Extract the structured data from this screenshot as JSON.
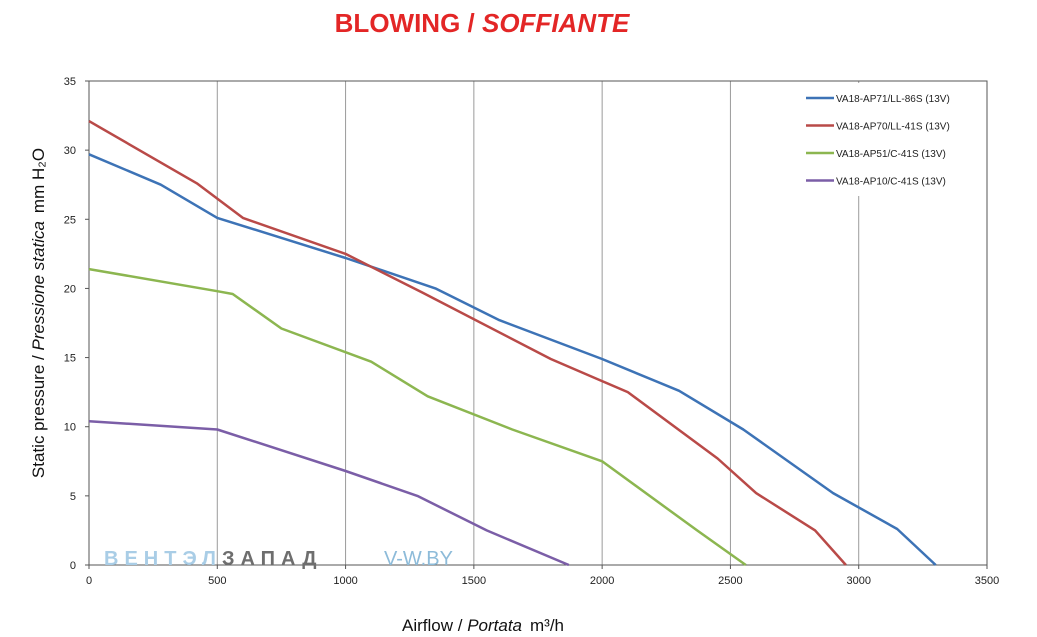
{
  "chart_data": {
    "type": "line",
    "title": "BLOWING",
    "subtitle": "SOFFIANTE",
    "xlabel": "Airflow",
    "xlabel_italic": "Portata",
    "xunit": "m³/h",
    "ylabel": "Static pressure",
    "ylabel_italic": "Pressione statica",
    "yunit": "mm H₂O",
    "xlim": [
      0,
      3500
    ],
    "ylim": [
      0,
      35
    ],
    "x_ticks": [
      0,
      500,
      1000,
      1500,
      2000,
      2500,
      3000,
      3500
    ],
    "y_ticks": [
      0,
      5,
      10,
      15,
      20,
      25,
      30,
      35
    ],
    "grid": "vertical",
    "legend_position": "top-right",
    "series": [
      {
        "name": "VA18-AP71/LL-86S (13V)",
        "color": "#3d73b6",
        "points": [
          [
            0,
            29.7
          ],
          [
            280,
            27.5
          ],
          [
            500,
            25.1
          ],
          [
            1000,
            22.2
          ],
          [
            1350,
            20.0
          ],
          [
            1600,
            17.7
          ],
          [
            2000,
            14.9
          ],
          [
            2300,
            12.6
          ],
          [
            2550,
            9.8
          ],
          [
            2900,
            5.2
          ],
          [
            3150,
            2.6
          ],
          [
            3300,
            0
          ]
        ]
      },
      {
        "name": "VA18-AP70/LL-41S (13V)",
        "color": "#b94a48",
        "points": [
          [
            0,
            32.1
          ],
          [
            420,
            27.6
          ],
          [
            600,
            25.1
          ],
          [
            1000,
            22.5
          ],
          [
            1300,
            19.7
          ],
          [
            1800,
            14.9
          ],
          [
            2000,
            13.3
          ],
          [
            2100,
            12.5
          ],
          [
            2450,
            7.7
          ],
          [
            2600,
            5.2
          ],
          [
            2830,
            2.5
          ],
          [
            2950,
            0
          ]
        ]
      },
      {
        "name": "VA18-AP51/C-41S (13V)",
        "color": "#8cb650",
        "points": [
          [
            0,
            21.4
          ],
          [
            500,
            19.8
          ],
          [
            560,
            19.6
          ],
          [
            750,
            17.1
          ],
          [
            1100,
            14.7
          ],
          [
            1320,
            12.2
          ],
          [
            1650,
            9.8
          ],
          [
            2000,
            7.5
          ],
          [
            2370,
            2.5
          ],
          [
            2560,
            0
          ]
        ]
      },
      {
        "name": "VA18-AP10/C-41S (13V)",
        "color": "#7b5ea7",
        "points": [
          [
            0,
            10.4
          ],
          [
            500,
            9.8
          ],
          [
            1000,
            6.8
          ],
          [
            1280,
            5.0
          ],
          [
            1550,
            2.5
          ],
          [
            1870,
            0
          ]
        ]
      }
    ]
  },
  "watermark": {
    "brand_part1": "ВЕНТЭЛ",
    "brand_part2": "ЗАПАД",
    "site": "V-W.BY",
    "color_part1": "#a9cde6",
    "color_part2": "#6e6e6e",
    "color_site": "#8dbbd9"
  }
}
